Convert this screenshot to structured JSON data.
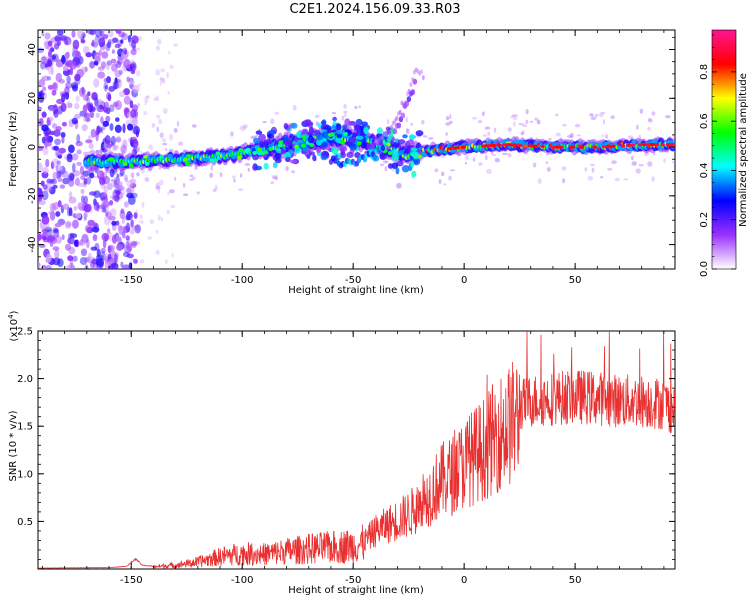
{
  "figure_title": "C2E1.2024.156.09.33.R03",
  "chart_data": [
    {
      "type": "heatmap",
      "title": "C2E1.2024.156.09.33.R03",
      "xlabel": "Height of straight line (km)",
      "ylabel": "Frequency (Hz)",
      "xlim": [
        -192,
        95
      ],
      "ylim": [
        -50,
        48
      ],
      "xticks": [
        -150,
        -100,
        -50,
        0,
        50
      ],
      "yticks": [
        -40,
        -20,
        0,
        20,
        40
      ],
      "xtick_labels": [
        "-150",
        "-100",
        "-50",
        "0",
        "50"
      ],
      "ytick_labels": [
        "-40",
        "-20",
        "0",
        "20",
        "40"
      ],
      "colorbar": {
        "label": "Normalized spectral amplitude",
        "range": [
          0,
          0.97
        ],
        "ticks": [
          0.0,
          0.2,
          0.4,
          0.6,
          0.8
        ],
        "tick_labels": [
          "0.0",
          "0.2",
          "0.4",
          "0.6",
          "0.8"
        ],
        "colormap": [
          "#ffffff",
          "#9b30ff",
          "#0000ff",
          "#00ffff",
          "#00ff00",
          "#ffff00",
          "#ff0000",
          "#ff1493"
        ]
      },
      "trace_frequency_hz": {
        "x": [
          -170,
          -150,
          -130,
          -110,
          -90,
          -75,
          -60,
          -45,
          -35,
          -25,
          -20,
          -10,
          0,
          20,
          40,
          60,
          80,
          95
        ],
        "y": [
          -6,
          -6,
          -5,
          -4,
          -1,
          2,
          4,
          3,
          0,
          -4,
          -2,
          -1,
          0,
          1,
          0,
          0,
          1,
          1
        ]
      },
      "branch_frequency_hz": {
        "x": [
          -60,
          -50,
          -40,
          -30,
          -22
        ],
        "y": [
          -6,
          -7,
          -3,
          8,
          26
        ]
      },
      "noise_region_x": [
        -192,
        -155
      ]
    },
    {
      "type": "line",
      "xlabel": "Height of straight line (km)",
      "ylabel": "SNR (10 * v/v)",
      "yscale_label": "(x10",
      "yscale_exponent": "4",
      "yscale_close": ")",
      "xlim": [
        -192,
        95
      ],
      "ylim": [
        0,
        25000
      ],
      "xticks": [
        -150,
        -100,
        -50,
        0,
        50
      ],
      "yticks": [
        5000,
        10000,
        15000,
        20000,
        25000
      ],
      "xtick_labels": [
        "-150",
        "-100",
        "-50",
        "0",
        "50"
      ],
      "ytick_labels": [
        "0.5",
        "1.0",
        "1.5",
        "2.0",
        "2.5"
      ],
      "color": "#e83030",
      "series": [
        {
          "x": [
            -192,
            -160,
            -152,
            -148,
            -145,
            -140,
            -130,
            -120,
            -110,
            -100,
            -90,
            -80,
            -70,
            -60,
            -50,
            -45,
            -40,
            -35,
            -30,
            -25,
            -20,
            -15,
            -10,
            -5,
            0,
            5,
            10,
            15,
            20,
            25,
            30,
            40,
            50,
            60,
            70,
            80,
            90,
            95
          ],
          "y": [
            100,
            150,
            300,
            1100,
            400,
            300,
            500,
            900,
            1600,
            2000,
            1900,
            2300,
            2600,
            2800,
            3000,
            3300,
            4500,
            5200,
            5800,
            6500,
            7500,
            9000,
            10500,
            11200,
            12500,
            13500,
            14500,
            16000,
            17000,
            18000,
            18500,
            18800,
            19000,
            18800,
            18500,
            18500,
            18200,
            17500
          ]
        }
      ]
    }
  ]
}
